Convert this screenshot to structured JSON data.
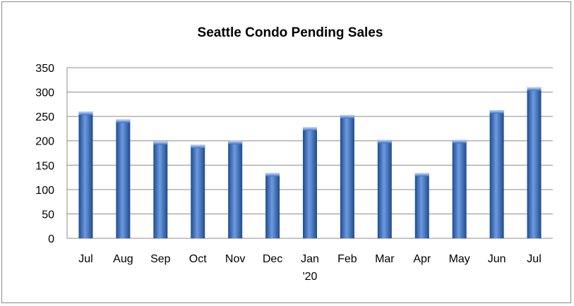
{
  "chart_data": {
    "type": "bar",
    "title": "Seattle Condo Pending Sales",
    "categories": [
      "Jul",
      "Aug",
      "Sep",
      "Oct",
      "Nov",
      "Dec",
      "Jan",
      "Feb",
      "Mar",
      "Apr",
      "May",
      "Jun",
      "Jul"
    ],
    "category_sublabels": [
      "",
      "",
      "",
      "",
      "",
      "",
      "'20",
      "",
      "",
      "",
      "",
      "",
      ""
    ],
    "values": [
      260,
      244,
      199,
      192,
      200,
      134,
      228,
      253,
      202,
      134,
      202,
      263,
      310
    ],
    "xlabel": "",
    "ylabel": "",
    "ylim": [
      0,
      350
    ],
    "yticks": [
      "0",
      "50",
      "100",
      "150",
      "200",
      "250",
      "300",
      "350"
    ],
    "grid": true,
    "legend": "none",
    "bar_color": "#3a6fc4",
    "bar_color_dark": "#1f4a8f",
    "bar_color_light": "#6d9be0"
  }
}
